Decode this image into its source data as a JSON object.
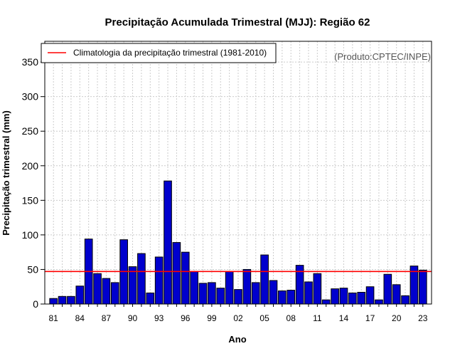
{
  "chart_data": {
    "type": "bar",
    "title": "Precipitação Acumulada Trimestral (MJJ): Região 62",
    "xlabel": "Ano",
    "ylabel": "Precipitação trimestral (mm)",
    "ylim": [
      0,
      380
    ],
    "yticks": [
      0,
      50,
      100,
      150,
      200,
      250,
      300,
      350
    ],
    "years": [
      1981,
      1982,
      1983,
      1984,
      1985,
      1986,
      1987,
      1988,
      1989,
      1990,
      1991,
      1992,
      1993,
      1994,
      1995,
      1996,
      1997,
      1998,
      1999,
      2000,
      2001,
      2002,
      2003,
      2004,
      2005,
      2006,
      2007,
      2008,
      2009,
      2010,
      2011,
      2012,
      2013,
      2014,
      2015,
      2016,
      2017,
      2018,
      2019,
      2020,
      2021,
      2022,
      2023
    ],
    "values": [
      8,
      11,
      11,
      26,
      94,
      44,
      37,
      31,
      93,
      54,
      73,
      16,
      68,
      178,
      89,
      75,
      47,
      30,
      31,
      23,
      47,
      21,
      50,
      31,
      71,
      34,
      19,
      20,
      56,
      32,
      44,
      6,
      22,
      23,
      16,
      17,
      25,
      6,
      43,
      28,
      12,
      55,
      49
    ],
    "xtick_labels": [
      {
        "index": 0,
        "label": "81"
      },
      {
        "index": 3,
        "label": "84"
      },
      {
        "index": 6,
        "label": "87"
      },
      {
        "index": 9,
        "label": "90"
      },
      {
        "index": 12,
        "label": "93"
      },
      {
        "index": 15,
        "label": "96"
      },
      {
        "index": 18,
        "label": "99"
      },
      {
        "index": 21,
        "label": "02"
      },
      {
        "index": 24,
        "label": "05"
      },
      {
        "index": 27,
        "label": "08"
      },
      {
        "index": 30,
        "label": "11"
      },
      {
        "index": 33,
        "label": "14"
      },
      {
        "index": 36,
        "label": "17"
      },
      {
        "index": 39,
        "label": "20"
      },
      {
        "index": 42,
        "label": "23"
      }
    ],
    "climatology": {
      "value": 47,
      "label": "Climatologia da precipitação trimestral (1981-2010)",
      "color": "#ff0000"
    },
    "bar_color": "#0000cd",
    "grid": true,
    "legend_position": "top-left",
    "source_note": "(Produto:CPTEC/INPE)"
  }
}
